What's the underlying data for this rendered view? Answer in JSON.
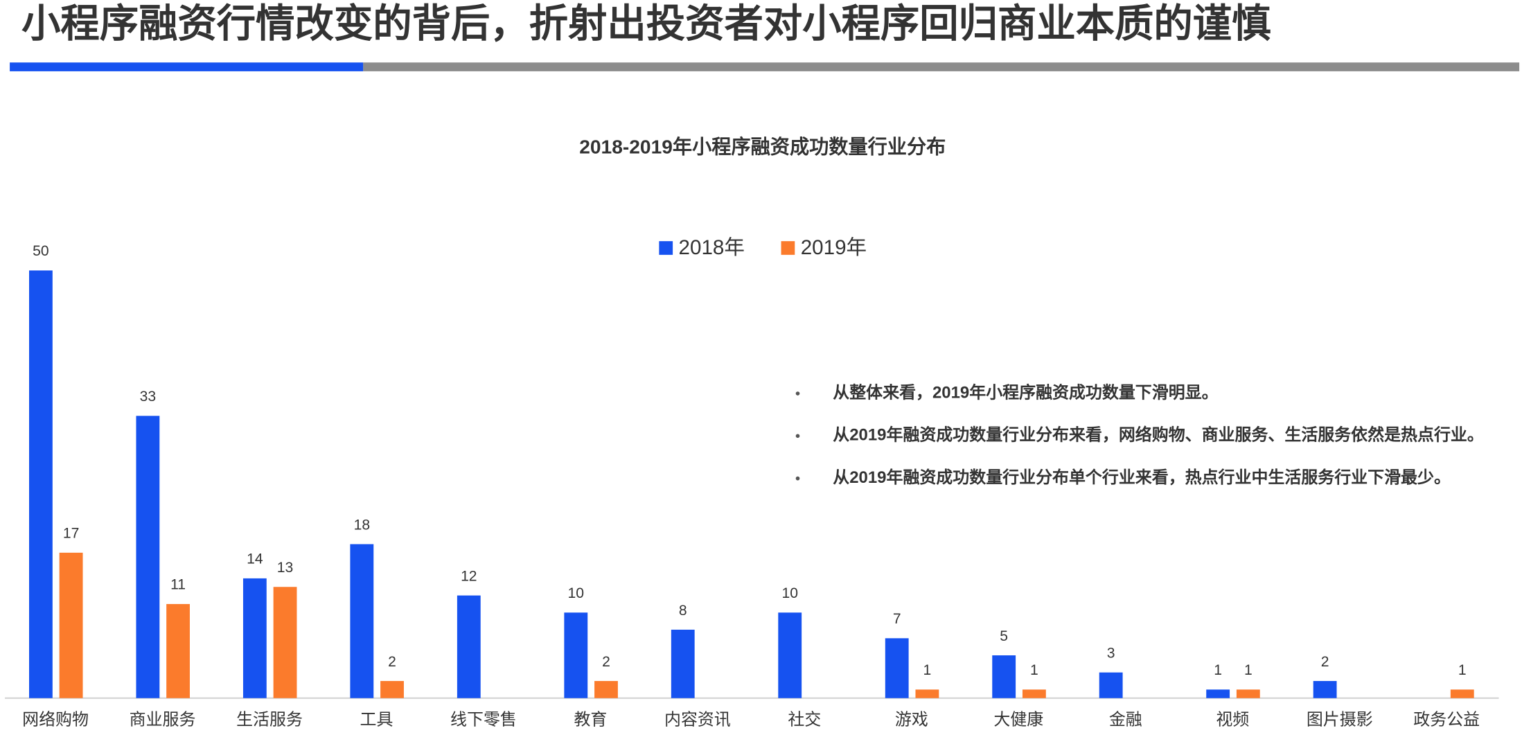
{
  "page_title": "小程序融资行情改变的背后，折射出投资者对小程序回归商业本质的谨慎",
  "chart_data": {
    "type": "bar",
    "title": "2018-2019年小程序融资成功数量行业分布",
    "categories": [
      "网络购物",
      "商业服务",
      "生活服务",
      "工具",
      "线下零售",
      "教育",
      "内容资讯",
      "社交",
      "游戏",
      "大健康",
      "金融",
      "视频",
      "图片摄影",
      "政务公益"
    ],
    "series": [
      {
        "name": "2018年",
        "color": "#1652f0",
        "values": [
          50,
          33,
          14,
          18,
          12,
          10,
          8,
          10,
          7,
          5,
          3,
          1,
          2,
          null
        ]
      },
      {
        "name": "2019年",
        "color": "#fb7b2c",
        "values": [
          17,
          11,
          13,
          2,
          null,
          2,
          null,
          null,
          1,
          1,
          null,
          1,
          null,
          1
        ]
      }
    ],
    "ylim": [
      0,
      50
    ]
  },
  "notes": [
    "从整体来看，2019年小程序融资成功数量下滑明显。",
    "从2019年融资成功数量行业分布来看，网络购物、商业服务、生活服务依然是热点行业。",
    "从2019年融资成功数量行业分布单个行业来看，热点行业中生活服务行业下滑最少。"
  ]
}
